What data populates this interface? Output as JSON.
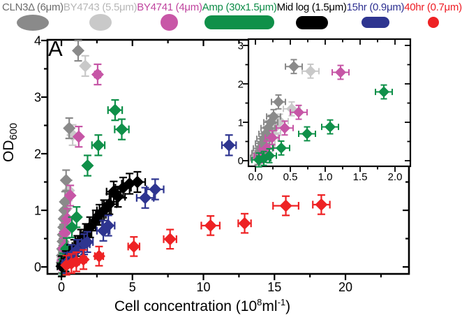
{
  "panel_label": "A",
  "legend": {
    "items": [
      {
        "label": "CLN3Δ (6μm)",
        "text_color": "#6b6b6b",
        "shape": {
          "name": "cln3-cell-shape",
          "type": "ellipse",
          "color": "#8a8a8a",
          "w": 46,
          "h": 23
        }
      },
      {
        "label": "BY4743 (5.5μm)",
        "text_color": "#b7b7b7",
        "shape": {
          "name": "by4743-cell-shape",
          "type": "ellipse",
          "color": "#c9c9c9",
          "w": 32,
          "h": 24
        }
      },
      {
        "label": "BY4741 (4μm)",
        "text_color": "#c0459f",
        "shape": {
          "name": "by4741-cell-shape",
          "type": "ellipse",
          "color": "#c857a7",
          "w": 25,
          "h": 24
        }
      },
      {
        "label": "Amp (30x1.5μm)",
        "text_color": "#0e8c48",
        "shape": {
          "name": "amp-cell-shape",
          "type": "stadium",
          "color": "#0f9049",
          "w": 100,
          "h": 20
        }
      },
      {
        "label": "Mid log (1.5μm)",
        "text_color": "#000000",
        "shape": {
          "name": "midlog-cell-shape",
          "type": "stadium",
          "color": "#000000",
          "w": 46,
          "h": 19
        }
      },
      {
        "label": "15hr (0.9μm)",
        "text_color": "#2e3192",
        "shape": {
          "name": "15hr-cell-shape",
          "type": "stadium",
          "color": "#2e3590",
          "w": 40,
          "h": 16
        }
      },
      {
        "label": "40hr (0.7μm)",
        "text_color": "#ee1c24",
        "shape": {
          "name": "40hr-cell-shape",
          "type": "circle",
          "color": "#ee2224",
          "w": 16,
          "h": 16
        }
      }
    ]
  },
  "axis_labels": {
    "x_prefix": "Cell concentration (10",
    "x_sup": "8",
    "x_unit": "ml",
    "x_sup2": "-1",
    "x_close": ")",
    "y_text": "OD",
    "y_sub": "600"
  },
  "chart_data": {
    "type": "scatter",
    "xlabel": "Cell concentration (10⁸ml⁻¹)",
    "ylabel": "OD600",
    "legend_position": "top",
    "grid": false,
    "main_axis": {
      "xlim": [
        -0.983,
        24.47
      ],
      "ylim": [
        -0.1235,
        4.012
      ],
      "xticks": [
        {
          "v": 0,
          "t": "0"
        },
        {
          "v": 5,
          "t": "5"
        },
        {
          "v": 10,
          "t": "10"
        },
        {
          "v": 15,
          "t": "15"
        },
        {
          "v": 20,
          "t": "20"
        }
      ],
      "xminor": [
        2.5,
        7.5,
        12.5,
        17.5,
        22.5
      ],
      "yticks": [
        {
          "v": 0,
          "t": "0"
        },
        {
          "v": 1,
          "t": "1"
        },
        {
          "v": 2,
          "t": "2"
        },
        {
          "v": 3,
          "t": "3"
        },
        {
          "v": 4,
          "t": "4"
        }
      ],
      "yminor": [
        0.5,
        1.5,
        2.5,
        3.5
      ]
    },
    "inset_axis": {
      "xlim": [
        -0.1,
        2.22
      ],
      "ylim": [
        -0.1455,
        3.164
      ],
      "xticks": [
        {
          "v": 0,
          "t": "0.0"
        },
        {
          "v": 0.5,
          "t": "0.5"
        },
        {
          "v": 1,
          "t": "1.0"
        },
        {
          "v": 1.5,
          "t": "1.5"
        },
        {
          "v": 2,
          "t": "2.0"
        }
      ],
      "xminor": [
        0.25,
        0.75,
        1.25,
        1.75
      ],
      "yticks": [
        {
          "v": 0,
          "t": "0"
        },
        {
          "v": 1,
          "t": "1"
        },
        {
          "v": 2,
          "t": "2"
        },
        {
          "v": 3,
          "t": "3"
        }
      ],
      "yminor": [
        0.5,
        1.5,
        2.5
      ]
    },
    "inset_series_names": [
      "BY4743",
      "CLN3Δ",
      "BY4741",
      "Amp"
    ],
    "inset_max_x": 2.06,
    "inset_max_y": 3.05,
    "series": [
      {
        "name": "BY4743",
        "color": "#c9c9c9",
        "ey": 0.18,
        "points": [
          [
            0.05,
            0.05,
            0.12
          ],
          [
            0.08,
            0.16,
            0.12
          ],
          [
            0.12,
            0.3,
            0.12
          ],
          [
            0.16,
            0.44,
            0.12
          ],
          [
            0.2,
            0.58,
            0.12
          ],
          [
            0.24,
            0.72,
            0.12
          ],
          [
            0.29,
            0.87,
            0.12
          ],
          [
            0.35,
            1.03,
            0.12
          ],
          [
            0.52,
            1.35,
            0.12
          ],
          [
            0.79,
            2.33,
            0.12
          ],
          [
            1.68,
            3.55,
            0.15
          ]
        ]
      },
      {
        "name": "CLN3Δ",
        "color": "#8a8a8a",
        "ey": 0.18,
        "points": [
          [
            0.03,
            0.08,
            0.1
          ],
          [
            0.05,
            0.2,
            0.1
          ],
          [
            0.07,
            0.32,
            0.1
          ],
          [
            0.1,
            0.45,
            0.1
          ],
          [
            0.12,
            0.57,
            0.1
          ],
          [
            0.15,
            0.7,
            0.1
          ],
          [
            0.18,
            0.85,
            0.1
          ],
          [
            0.22,
            1.0,
            0.1
          ],
          [
            0.26,
            1.15,
            0.1
          ],
          [
            0.33,
            1.53,
            0.1
          ],
          [
            0.55,
            2.45,
            0.12
          ],
          [
            1.18,
            3.82,
            0.15
          ]
        ]
      },
      {
        "name": "BY4741",
        "color": "#c656a6",
        "ey": 0.18,
        "points": [
          [
            0.08,
            0.12,
            0.1
          ],
          [
            0.16,
            0.33,
            0.1
          ],
          [
            0.24,
            0.6,
            0.1
          ],
          [
            0.42,
            0.85,
            0.12
          ],
          [
            0.62,
            1.26,
            0.12
          ],
          [
            1.22,
            2.3,
            0.12
          ],
          [
            2.55,
            3.4,
            0.2
          ]
        ]
      },
      {
        "name": "Amp",
        "color": "#0f9049",
        "ey": 0.18,
        "points": [
          [
            0.05,
            0.02,
            0.1
          ],
          [
            0.12,
            0.06,
            0.1
          ],
          [
            0.2,
            0.13,
            0.1
          ],
          [
            0.37,
            0.33,
            0.12
          ],
          [
            0.74,
            0.7,
            0.12
          ],
          [
            1.07,
            0.88,
            0.12
          ],
          [
            1.84,
            1.79,
            0.12
          ],
          [
            2.6,
            2.15,
            0.45
          ],
          [
            3.78,
            2.77,
            0.5
          ],
          [
            4.25,
            2.43,
            0.5
          ]
        ]
      },
      {
        "name": "Mid log",
        "color": "#000000",
        "ey": 0.18,
        "points": [
          [
            0.02,
            0.01,
            0.3
          ],
          [
            0.3,
            0.1,
            0.3
          ],
          [
            0.62,
            0.21,
            0.3
          ],
          [
            0.9,
            0.3,
            0.35
          ],
          [
            1.12,
            0.37,
            0.35
          ],
          [
            1.38,
            0.48,
            0.4
          ],
          [
            1.72,
            0.58,
            0.4
          ],
          [
            2.02,
            0.7,
            0.4
          ],
          [
            2.42,
            0.82,
            0.45
          ],
          [
            2.68,
            0.92,
            0.45
          ],
          [
            3.0,
            1.0,
            0.5
          ],
          [
            3.38,
            1.11,
            0.5
          ],
          [
            3.68,
            1.33,
            0.5
          ],
          [
            3.98,
            1.24,
            0.5
          ],
          [
            4.35,
            1.4,
            0.55
          ],
          [
            4.8,
            1.47,
            0.55
          ],
          [
            5.35,
            1.5,
            0.55
          ]
        ]
      },
      {
        "name": "15hr",
        "color": "#2e3590",
        "ey": 0.18,
        "points": [
          [
            0.35,
            0.07,
            0.3
          ],
          [
            0.72,
            0.21,
            0.3
          ],
          [
            1.1,
            0.3,
            0.35
          ],
          [
            1.6,
            0.4,
            0.4
          ],
          [
            1.82,
            0.44,
            0.4
          ],
          [
            2.95,
            0.64,
            0.45
          ],
          [
            3.3,
            0.73,
            0.45
          ],
          [
            5.9,
            1.22,
            0.6
          ],
          [
            6.6,
            1.37,
            0.6
          ],
          [
            11.8,
            2.15,
            0.5
          ]
        ]
      },
      {
        "name": "40hr",
        "color": "#ee2224",
        "ey": 0.17,
        "points": [
          [
            0.35,
            0.03,
            0.15
          ],
          [
            0.7,
            0.06,
            0.15
          ],
          [
            1.05,
            0.09,
            0.2
          ],
          [
            1.55,
            0.13,
            0.2
          ],
          [
            2.65,
            0.19,
            0.3
          ],
          [
            5.1,
            0.36,
            0.4
          ],
          [
            7.65,
            0.49,
            0.45
          ],
          [
            10.5,
            0.73,
            0.65
          ],
          [
            12.9,
            0.77,
            0.45
          ],
          [
            15.8,
            1.08,
            0.9
          ],
          [
            18.3,
            1.1,
            0.6
          ]
        ]
      }
    ]
  }
}
